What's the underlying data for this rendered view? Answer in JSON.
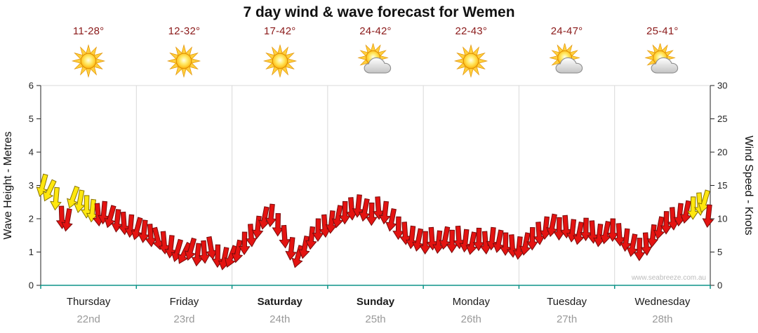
{
  "watermark": "www.seabreeze.com.au",
  "colors": {
    "arrow_red_fill": "#e41311",
    "arrow_red_stroke": "#7a0c0c",
    "arrow_yellow_fill": "#ffe70f",
    "arrow_yellow_stroke": "#8a7500",
    "temp_text": "#8b1a1a",
    "day_text": "#1c1c1c",
    "date_text": "#999999",
    "axis_line": "#222222",
    "bottom_axis": "#0d9488",
    "grid": "#d9d9d9",
    "watermark_text": "#bbbbbb"
  },
  "header": {
    "days": [
      {
        "temp": "11-28°",
        "icon": "sun"
      },
      {
        "temp": "12-32°",
        "icon": "sun"
      },
      {
        "temp": "17-42°",
        "icon": "sun"
      },
      {
        "temp": "24-42°",
        "icon": "sun-cloud"
      },
      {
        "temp": "22-43°",
        "icon": "sun"
      },
      {
        "temp": "24-47°",
        "icon": "sun-cloud"
      },
      {
        "temp": "25-41°",
        "icon": "sun-cloud"
      }
    ]
  },
  "chart_data": {
    "type": "wind-arrows",
    "title": "7 day wind & wave forecast for Wemen",
    "x_axis": {
      "unit": "days",
      "range": [
        0,
        7
      ],
      "categories": [
        {
          "day": "Thursday",
          "date": "22nd",
          "bold": false
        },
        {
          "day": "Friday",
          "date": "23rd",
          "bold": false
        },
        {
          "day": "Saturday",
          "date": "24th",
          "bold": true
        },
        {
          "day": "Sunday",
          "date": "25th",
          "bold": true
        },
        {
          "day": "Monday",
          "date": "26th",
          "bold": false
        },
        {
          "day": "Tuesday",
          "date": "27th",
          "bold": false
        },
        {
          "day": "Wednesday",
          "date": "28th",
          "bold": false
        }
      ]
    },
    "y_left": {
      "label": "Wave Height - Metres",
      "min": 0,
      "max": 6,
      "step": 1
    },
    "y_right": {
      "label": "Wind Speed - Knots",
      "min": 0,
      "max": 30,
      "step": 5
    },
    "points": [
      {
        "t": 0.02,
        "knots": 15.0,
        "dir": 195,
        "color": "yellow"
      },
      {
        "t": 0.09,
        "knots": 14.2,
        "dir": 205,
        "color": "yellow"
      },
      {
        "t": 0.16,
        "knots": 13.0,
        "dir": 185,
        "color": "yellow"
      },
      {
        "t": 0.22,
        "knots": 10.2,
        "dir": 178,
        "color": "red"
      },
      {
        "t": 0.28,
        "knots": 9.8,
        "dir": 190,
        "color": "red"
      },
      {
        "t": 0.34,
        "knots": 13.2,
        "dir": 200,
        "color": "yellow"
      },
      {
        "t": 0.41,
        "knots": 12.6,
        "dir": 190,
        "color": "yellow"
      },
      {
        "t": 0.48,
        "knots": 11.8,
        "dir": 181,
        "color": "yellow"
      },
      {
        "t": 0.54,
        "knots": 11.2,
        "dir": 186,
        "color": "yellow"
      },
      {
        "t": 0.6,
        "knots": 10.6,
        "dir": 175,
        "color": "red"
      },
      {
        "t": 0.66,
        "knots": 10.9,
        "dir": 185,
        "color": "red"
      },
      {
        "t": 0.73,
        "knots": 10.3,
        "dir": 196,
        "color": "red"
      },
      {
        "t": 0.8,
        "knots": 9.7,
        "dir": 186,
        "color": "red"
      },
      {
        "t": 0.87,
        "knots": 9.3,
        "dir": 176,
        "color": "red"
      },
      {
        "t": 0.94,
        "knots": 8.9,
        "dir": 185,
        "color": "red"
      },
      {
        "t": 1.01,
        "knots": 8.5,
        "dir": 195,
        "color": "red"
      },
      {
        "t": 1.08,
        "knots": 8.1,
        "dir": 186,
        "color": "red"
      },
      {
        "t": 1.15,
        "knots": 7.5,
        "dir": 176,
        "color": "red"
      },
      {
        "t": 1.22,
        "knots": 7.0,
        "dir": 166,
        "color": "red"
      },
      {
        "t": 1.29,
        "knots": 6.4,
        "dir": 175,
        "color": "red"
      },
      {
        "t": 1.36,
        "knots": 5.8,
        "dir": 186,
        "color": "red"
      },
      {
        "t": 1.43,
        "knots": 5.2,
        "dir": 196,
        "color": "red"
      },
      {
        "t": 1.5,
        "knots": 4.8,
        "dir": 206,
        "color": "red"
      },
      {
        "t": 1.57,
        "knots": 5.4,
        "dir": 196,
        "color": "red"
      },
      {
        "t": 1.64,
        "knots": 4.6,
        "dir": 186,
        "color": "red"
      },
      {
        "t": 1.71,
        "knots": 5.0,
        "dir": 176,
        "color": "red"
      },
      {
        "t": 1.78,
        "knots": 5.6,
        "dir": 170,
        "color": "red"
      },
      {
        "t": 1.85,
        "knots": 4.4,
        "dir": 181,
        "color": "red"
      },
      {
        "t": 1.92,
        "knots": 4.0,
        "dir": 191,
        "color": "red"
      },
      {
        "t": 1.99,
        "knots": 4.3,
        "dir": 201,
        "color": "red"
      },
      {
        "t": 2.06,
        "knots": 5.1,
        "dir": 191,
        "color": "red"
      },
      {
        "t": 2.13,
        "knots": 6.3,
        "dir": 181,
        "color": "red"
      },
      {
        "t": 2.2,
        "knots": 7.5,
        "dir": 176,
        "color": "red"
      },
      {
        "t": 2.27,
        "knots": 8.7,
        "dir": 186,
        "color": "red"
      },
      {
        "t": 2.34,
        "knots": 10.1,
        "dir": 191,
        "color": "red"
      },
      {
        "t": 2.41,
        "knots": 10.5,
        "dir": 186,
        "color": "red"
      },
      {
        "t": 2.48,
        "knots": 9.1,
        "dir": 181,
        "color": "red"
      },
      {
        "t": 2.55,
        "knots": 7.3,
        "dir": 176,
        "color": "red"
      },
      {
        "t": 2.62,
        "knots": 5.5,
        "dir": 186,
        "color": "red"
      },
      {
        "t": 2.69,
        "knots": 4.3,
        "dir": 196,
        "color": "red"
      },
      {
        "t": 2.76,
        "knots": 5.7,
        "dir": 191,
        "color": "red"
      },
      {
        "t": 2.83,
        "knots": 7.1,
        "dir": 186,
        "color": "red"
      },
      {
        "t": 2.9,
        "knots": 8.3,
        "dir": 181,
        "color": "red"
      },
      {
        "t": 2.97,
        "knots": 8.9,
        "dir": 176,
        "color": "red"
      },
      {
        "t": 3.04,
        "knots": 9.5,
        "dir": 186,
        "color": "red"
      },
      {
        "t": 3.11,
        "knots": 10.3,
        "dir": 191,
        "color": "red"
      },
      {
        "t": 3.18,
        "knots": 10.9,
        "dir": 181,
        "color": "red"
      },
      {
        "t": 3.25,
        "knots": 11.5,
        "dir": 176,
        "color": "red"
      },
      {
        "t": 3.32,
        "knots": 11.9,
        "dir": 186,
        "color": "red"
      },
      {
        "t": 3.39,
        "knots": 11.3,
        "dir": 191,
        "color": "red"
      },
      {
        "t": 3.46,
        "knots": 10.7,
        "dir": 181,
        "color": "red"
      },
      {
        "t": 3.53,
        "knots": 11.6,
        "dir": 176,
        "color": "red"
      },
      {
        "t": 3.6,
        "knots": 10.9,
        "dir": 186,
        "color": "red"
      },
      {
        "t": 3.67,
        "knots": 9.8,
        "dir": 191,
        "color": "red"
      },
      {
        "t": 3.74,
        "knots": 8.6,
        "dir": 181,
        "color": "red"
      },
      {
        "t": 3.81,
        "knots": 7.8,
        "dir": 176,
        "color": "red"
      },
      {
        "t": 3.88,
        "knots": 7.2,
        "dir": 186,
        "color": "red"
      },
      {
        "t": 3.95,
        "knots": 6.8,
        "dir": 191,
        "color": "red"
      },
      {
        "t": 4.02,
        "knots": 6.4,
        "dir": 181,
        "color": "red"
      },
      {
        "t": 4.09,
        "knots": 7.0,
        "dir": 176,
        "color": "red"
      },
      {
        "t": 4.16,
        "knots": 6.5,
        "dir": 186,
        "color": "red"
      },
      {
        "t": 4.23,
        "knots": 7.1,
        "dir": 191,
        "color": "red"
      },
      {
        "t": 4.3,
        "knots": 6.6,
        "dir": 181,
        "color": "red"
      },
      {
        "t": 4.37,
        "knots": 7.2,
        "dir": 176,
        "color": "red"
      },
      {
        "t": 4.44,
        "knots": 6.7,
        "dir": 186,
        "color": "red"
      },
      {
        "t": 4.51,
        "knots": 6.3,
        "dir": 191,
        "color": "red"
      },
      {
        "t": 4.58,
        "knots": 6.9,
        "dir": 181,
        "color": "red"
      },
      {
        "t": 4.65,
        "knots": 6.4,
        "dir": 176,
        "color": "red"
      },
      {
        "t": 4.72,
        "knots": 7.0,
        "dir": 186,
        "color": "red"
      },
      {
        "t": 4.79,
        "knots": 6.6,
        "dir": 191,
        "color": "red"
      },
      {
        "t": 4.86,
        "knots": 6.2,
        "dir": 181,
        "color": "red"
      },
      {
        "t": 4.93,
        "knots": 5.9,
        "dir": 176,
        "color": "red"
      },
      {
        "t": 5.0,
        "knots": 5.6,
        "dir": 186,
        "color": "red"
      },
      {
        "t": 5.07,
        "knots": 6.2,
        "dir": 191,
        "color": "red"
      },
      {
        "t": 5.14,
        "knots": 7.0,
        "dir": 181,
        "color": "red"
      },
      {
        "t": 5.21,
        "knots": 7.8,
        "dir": 176,
        "color": "red"
      },
      {
        "t": 5.28,
        "knots": 8.6,
        "dir": 186,
        "color": "red"
      },
      {
        "t": 5.35,
        "knots": 9.0,
        "dir": 191,
        "color": "red"
      },
      {
        "t": 5.42,
        "knots": 8.5,
        "dir": 181,
        "color": "red"
      },
      {
        "t": 5.49,
        "knots": 8.8,
        "dir": 176,
        "color": "red"
      },
      {
        "t": 5.56,
        "knots": 8.2,
        "dir": 186,
        "color": "red"
      },
      {
        "t": 5.63,
        "knots": 7.8,
        "dir": 191,
        "color": "red"
      },
      {
        "t": 5.7,
        "knots": 8.4,
        "dir": 181,
        "color": "red"
      },
      {
        "t": 5.77,
        "knots": 8.0,
        "dir": 176,
        "color": "red"
      },
      {
        "t": 5.84,
        "knots": 7.5,
        "dir": 186,
        "color": "red"
      },
      {
        "t": 5.91,
        "knots": 7.9,
        "dir": 191,
        "color": "red"
      },
      {
        "t": 5.98,
        "knots": 8.3,
        "dir": 181,
        "color": "red"
      },
      {
        "t": 6.05,
        "knots": 7.6,
        "dir": 176,
        "color": "red"
      },
      {
        "t": 6.12,
        "knots": 6.8,
        "dir": 186,
        "color": "red"
      },
      {
        "t": 6.19,
        "knots": 6.0,
        "dir": 191,
        "color": "red"
      },
      {
        "t": 6.26,
        "knots": 5.4,
        "dir": 181,
        "color": "red"
      },
      {
        "t": 6.33,
        "knots": 6.2,
        "dir": 176,
        "color": "red"
      },
      {
        "t": 6.4,
        "knots": 7.4,
        "dir": 186,
        "color": "red"
      },
      {
        "t": 6.47,
        "knots": 8.6,
        "dir": 191,
        "color": "red"
      },
      {
        "t": 6.54,
        "knots": 9.4,
        "dir": 181,
        "color": "red"
      },
      {
        "t": 6.61,
        "knots": 10.0,
        "dir": 176,
        "color": "red"
      },
      {
        "t": 6.68,
        "knots": 10.6,
        "dir": 186,
        "color": "red"
      },
      {
        "t": 6.75,
        "knots": 11.0,
        "dir": 191,
        "color": "red"
      },
      {
        "t": 6.82,
        "knots": 11.6,
        "dir": 181,
        "color": "yellow"
      },
      {
        "t": 6.89,
        "knots": 12.2,
        "dir": 176,
        "color": "yellow"
      },
      {
        "t": 6.94,
        "knots": 12.6,
        "dir": 196,
        "color": "yellow"
      },
      {
        "t": 6.98,
        "knots": 10.4,
        "dir": 186,
        "color": "red"
      }
    ]
  }
}
